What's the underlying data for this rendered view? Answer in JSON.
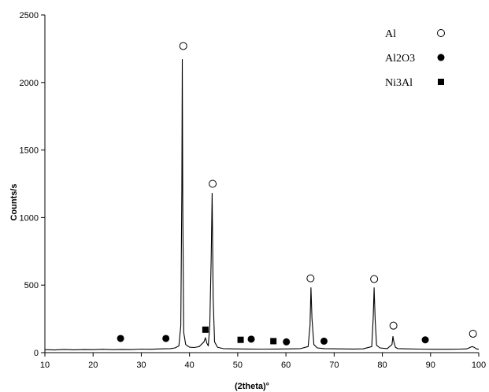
{
  "chart_data": {
    "type": "line",
    "xlabel": "(2theta)°",
    "ylabel": "Counts/s",
    "xlim": [
      10,
      100
    ],
    "ylim": [
      0,
      2500
    ],
    "xticks": [
      "10",
      "20",
      "30",
      "40",
      "50",
      "60",
      "70",
      "80",
      "90",
      "100"
    ],
    "yticks": [
      "0",
      "500",
      "1000",
      "1500",
      "2000",
      "2500"
    ],
    "grid": false,
    "legend_position": "top-right",
    "legend": [
      {
        "label": "Al",
        "marker": "open-circle"
      },
      {
        "label": "Al2O3",
        "marker": "filled-circle"
      },
      {
        "label": "Ni3Al",
        "marker": "filled-square"
      }
    ],
    "series": [
      {
        "x": [
          10,
          12,
          14,
          16,
          18,
          20,
          22,
          24,
          26,
          28,
          30,
          32,
          34,
          36,
          37,
          37.8,
          38.2,
          38.4,
          38.5,
          38.6,
          38.8,
          39.2,
          40,
          41,
          42,
          43,
          43.3,
          43.6,
          43.9,
          44.2,
          44.5,
          44.7,
          44.9,
          45.2,
          45.8,
          47,
          49,
          52,
          55,
          58,
          61,
          63,
          64.6,
          65,
          65.2,
          65.4,
          65.8,
          66.5,
          68,
          71,
          74,
          76,
          77.8,
          78.1,
          78.3,
          78.5,
          78.8,
          79.5,
          81,
          82,
          82.2,
          82.4,
          82.7,
          83.2,
          85,
          88,
          91,
          94,
          96,
          97.5,
          98.3,
          98.6,
          99,
          99.5,
          100
        ],
        "y": [
          22,
          20,
          24,
          21,
          23,
          22,
          25,
          22,
          24,
          23,
          26,
          25,
          28,
          30,
          35,
          50,
          200,
          1200,
          2170,
          1100,
          150,
          60,
          40,
          38,
          45,
          80,
          110,
          70,
          50,
          200,
          700,
          1180,
          400,
          80,
          40,
          30,
          28,
          27,
          26,
          27,
          28,
          30,
          45,
          200,
          480,
          250,
          60,
          35,
          30,
          28,
          27,
          28,
          45,
          250,
          480,
          250,
          55,
          35,
          30,
          60,
          120,
          80,
          40,
          30,
          28,
          26,
          25,
          25,
          26,
          28,
          40,
          45,
          40,
          28,
          25
        ]
      }
    ],
    "markers": [
      {
        "phase": "Al",
        "x": [
          38.7,
          44.8,
          65.1,
          78.3,
          82.3,
          98.8
        ],
        "y": [
          2270,
          1250,
          550,
          545,
          200,
          140
        ]
      },
      {
        "phase": "Al2O3",
        "x": [
          25.7,
          35.1,
          52.8,
          60.1,
          67.9,
          88.9
        ],
        "y": [
          105,
          105,
          100,
          80,
          85,
          95
        ]
      },
      {
        "phase": "Ni3Al",
        "x": [
          43.3,
          50.6,
          57.4
        ],
        "y": [
          170,
          95,
          85
        ]
      }
    ]
  }
}
